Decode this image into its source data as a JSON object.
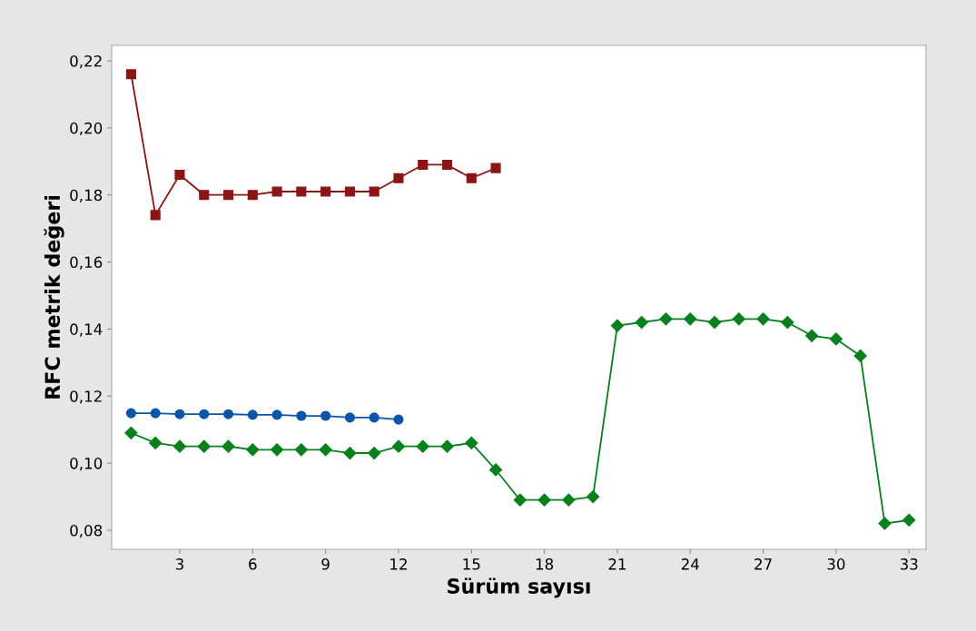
{
  "chart_data": {
    "type": "line",
    "xlabel": "Sürüm sayısı",
    "ylabel": "RFC metrik değeri",
    "xlim": [
      0.2,
      33.7
    ],
    "xticks": [
      3,
      6,
      9,
      12,
      15,
      18,
      21,
      24,
      27,
      30,
      33
    ],
    "ylim": [
      0.0743,
      0.2246
    ],
    "yticks": [
      {
        "value": 0.08,
        "label": "0,08"
      },
      {
        "value": 0.1,
        "label": "0,10"
      },
      {
        "value": 0.12,
        "label": "0,12"
      },
      {
        "value": 0.14,
        "label": "0,14"
      },
      {
        "value": 0.16,
        "label": "0,16"
      },
      {
        "value": 0.18,
        "label": "0,18"
      },
      {
        "value": 0.2,
        "label": "0,20"
      },
      {
        "value": 0.22,
        "label": "0,22"
      }
    ],
    "grid": false,
    "line_style": "solid",
    "series": [
      {
        "color": "#8b1414",
        "marker": "square",
        "x": [
          1,
          2,
          3,
          4,
          5,
          6,
          7,
          8,
          9,
          10,
          11,
          12,
          13,
          14,
          15,
          16
        ],
        "values": [
          0.216,
          0.174,
          0.186,
          0.18,
          0.18,
          0.18,
          0.181,
          0.181,
          0.181,
          0.181,
          0.181,
          0.185,
          0.189,
          0.189,
          0.185,
          0.188
        ]
      },
      {
        "color": "#0a55a8",
        "marker": "circle",
        "x": [
          1,
          2,
          3,
          4,
          5,
          6,
          7,
          8,
          9,
          10,
          11,
          12
        ],
        "values": [
          0.1149,
          0.1149,
          0.1146,
          0.1146,
          0.1146,
          0.1144,
          0.1144,
          0.1141,
          0.1141,
          0.1136,
          0.1136,
          0.113
        ]
      },
      {
        "color": "#08801e",
        "marker": "diamond",
        "x": [
          1,
          2,
          3,
          4,
          5,
          6,
          7,
          8,
          9,
          10,
          11,
          12,
          13,
          14,
          15,
          16,
          17,
          18,
          19,
          20,
          21,
          22,
          23,
          24,
          25,
          26,
          27,
          28,
          29,
          30,
          31,
          32,
          33
        ],
        "values": [
          0.109,
          0.106,
          0.105,
          0.105,
          0.105,
          0.104,
          0.104,
          0.104,
          0.104,
          0.103,
          0.103,
          0.105,
          0.105,
          0.105,
          0.106,
          0.098,
          0.089,
          0.089,
          0.089,
          0.09,
          0.141,
          0.142,
          0.143,
          0.143,
          0.142,
          0.143,
          0.143,
          0.142,
          0.138,
          0.137,
          0.132,
          0.082,
          0.083
        ]
      }
    ]
  }
}
